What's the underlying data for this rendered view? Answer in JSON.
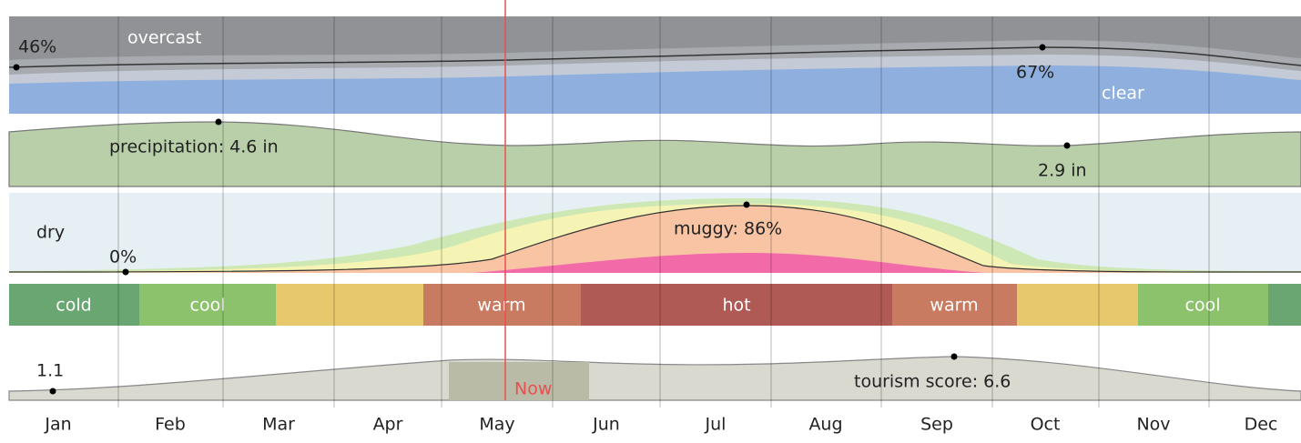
{
  "months": [
    "Jan",
    "Feb",
    "Mar",
    "Apr",
    "May",
    "Jun",
    "Jul",
    "Aug",
    "Sep",
    "Oct",
    "Nov",
    "Dec"
  ],
  "clouds": {
    "top_label": "overcast",
    "bottom_label": "clear",
    "min_label": "46%",
    "max_label": "67%"
  },
  "precipitation": {
    "max_label": "precipitation: 4.6 in",
    "min_label": "2.9 in"
  },
  "humidity": {
    "label": "dry",
    "min_label": "0%",
    "max_label": "muggy: 86%"
  },
  "temperature": {
    "segments": [
      "cold",
      "cool",
      "warm",
      "hot",
      "warm",
      "cool"
    ]
  },
  "tourism": {
    "min_label": "1.1",
    "max_label": "tourism score: 6.6"
  },
  "now_label": "Now"
}
